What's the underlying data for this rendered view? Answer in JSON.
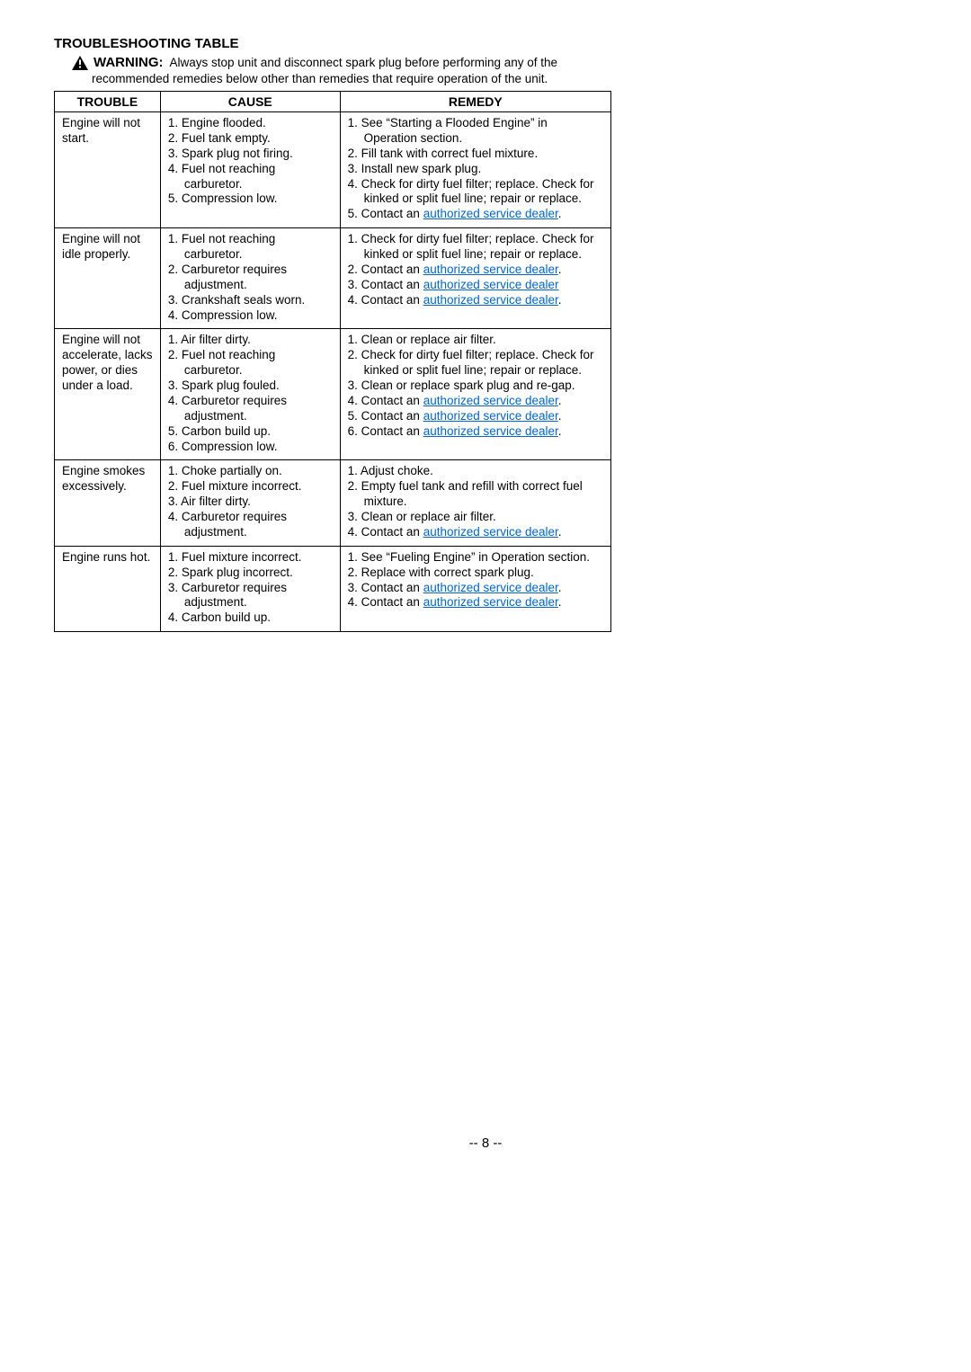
{
  "page": {
    "title": "TROUBLESHOOTING TABLE",
    "warning_label": "WARNING:",
    "warning_text_1": "Always stop unit and disconnect spark plug before performing any of the",
    "warning_text_2": "recommended remedies below other than remedies that require operation of the unit.",
    "page_number": "-- 8 --",
    "link_text": "authorized service dealer",
    "table": {
      "headers": {
        "trouble": "TROUBLE",
        "cause": "CAUSE",
        "remedy": "REMEDY"
      },
      "rows": [
        {
          "trouble": "Engine will not start.",
          "causes": [
            "1. Engine flooded.",
            "2. Fuel tank empty.",
            "3. Spark plug not firing.",
            "4. Fuel not reaching carburetor.",
            "5. Compression low."
          ],
          "remedies": [
            {
              "pre": "1. See “Starting a Flooded Engine” in Operation section."
            },
            {
              "pre": "2. Fill tank with correct fuel mixture."
            },
            {
              "pre": "3. Install new spark plug."
            },
            {
              "pre": "4. Check for dirty fuel filter; replace. Check for kinked or split fuel line; repair or replace."
            },
            {
              "pre": "5. Contact an ",
              "link": true,
              "post": "."
            }
          ]
        },
        {
          "trouble": "Engine will not idle properly.",
          "causes": [
            "1. Fuel not reaching carburetor.",
            "2. Carburetor requires adjustment.",
            "3. Crankshaft seals worn.",
            "4. Compression low."
          ],
          "remedies": [
            {
              "pre": "1. Check for dirty fuel filter; replace. Check for kinked or split fuel line; repair or replace."
            },
            {
              "pre": "2. Contact an ",
              "link": true,
              "post": "."
            },
            {
              "pre": "3. Contact an ",
              "link": true,
              "post": ""
            },
            {
              "pre": "4. Contact an ",
              "link": true,
              "post": "."
            }
          ]
        },
        {
          "trouble": "Engine will not accelerate, lacks power, or dies under a load.",
          "causes": [
            "1. Air filter dirty.",
            "2. Fuel not reaching carburetor.",
            "3. Spark plug fouled.",
            "4. Carburetor requires adjustment.",
            "5. Carbon build up.",
            "6. Compression low."
          ],
          "remedies": [
            {
              "pre": "1. Clean or replace air filter."
            },
            {
              "pre": "2. Check for dirty fuel filter; replace. Check for kinked or split fuel line; repair or replace."
            },
            {
              "pre": "3. Clean or replace spark plug and re-gap."
            },
            {
              "pre": "4. Contact an ",
              "link": true,
              "post": "."
            },
            {
              "pre": "5. Contact an ",
              "link": true,
              "post": "."
            },
            {
              "pre": "6. Contact an ",
              "link": true,
              "post": "."
            }
          ]
        },
        {
          "trouble": "Engine smokes excessively.",
          "causes": [
            "1. Choke partially on.",
            "2. Fuel mixture incorrect.",
            "3. Air filter dirty.",
            "4. Carburetor requires adjustment."
          ],
          "remedies": [
            {
              "pre": "1. Adjust choke."
            },
            {
              "pre": "2. Empty fuel tank and refill with correct fuel mixture."
            },
            {
              "pre": "3. Clean or replace air filter."
            },
            {
              "pre": "4. Contact an ",
              "link": true,
              "post": "."
            }
          ]
        },
        {
          "trouble": "Engine runs hot.",
          "causes": [
            "1. Fuel mixture incorrect.",
            "2. Spark plug incorrect.",
            "3. Carburetor requires adjustment.",
            "4. Carbon build up."
          ],
          "remedies": [
            {
              "pre": "1. See “Fueling Engine” in Operation section."
            },
            {
              "pre": "2. Replace with correct spark plug."
            },
            {
              "pre": "3. Contact an ",
              "link": true,
              "post": "."
            },
            {
              "pre": "4. Contact an ",
              "link": true,
              "post": "."
            }
          ]
        }
      ]
    }
  }
}
